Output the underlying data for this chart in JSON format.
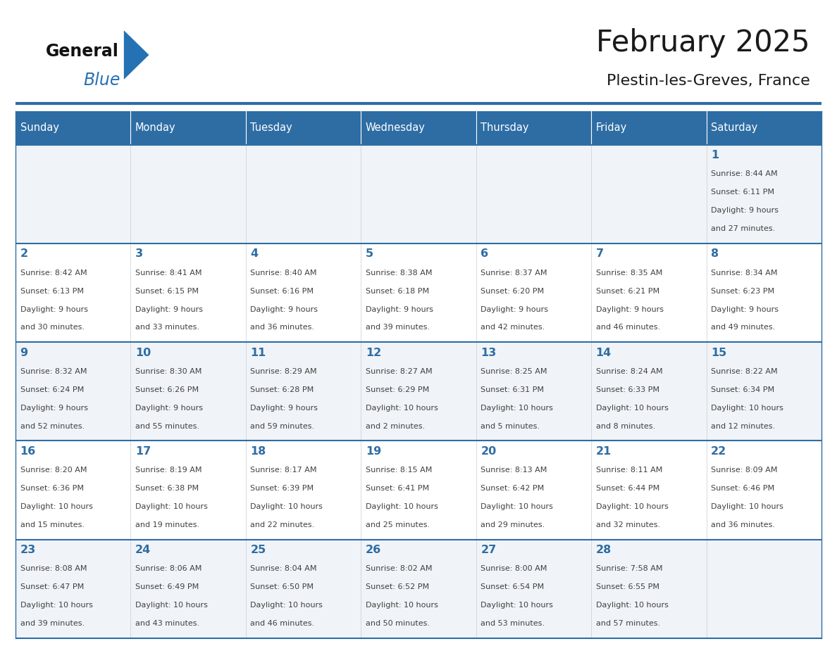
{
  "title": "February 2025",
  "subtitle": "Plestin-les-Greves, France",
  "header_bg": "#2E6DA4",
  "header_text": "#FFFFFF",
  "cell_bg_odd": "#F0F4F8",
  "cell_bg_even": "#FFFFFF",
  "day_number_color": "#2E6DA4",
  "info_text_color": "#404040",
  "border_color": "#2E6DA4",
  "days_of_week": [
    "Sunday",
    "Monday",
    "Tuesday",
    "Wednesday",
    "Thursday",
    "Friday",
    "Saturday"
  ],
  "logo_general_color": "#111111",
  "logo_blue_color": "#2472B3",
  "calendar": [
    [
      null,
      null,
      null,
      null,
      null,
      null,
      1
    ],
    [
      2,
      3,
      4,
      5,
      6,
      7,
      8
    ],
    [
      9,
      10,
      11,
      12,
      13,
      14,
      15
    ],
    [
      16,
      17,
      18,
      19,
      20,
      21,
      22
    ],
    [
      23,
      24,
      25,
      26,
      27,
      28,
      null
    ]
  ],
  "sunrise": {
    "1": "8:44 AM",
    "2": "8:42 AM",
    "3": "8:41 AM",
    "4": "8:40 AM",
    "5": "8:38 AM",
    "6": "8:37 AM",
    "7": "8:35 AM",
    "8": "8:34 AM",
    "9": "8:32 AM",
    "10": "8:30 AM",
    "11": "8:29 AM",
    "12": "8:27 AM",
    "13": "8:25 AM",
    "14": "8:24 AM",
    "15": "8:22 AM",
    "16": "8:20 AM",
    "17": "8:19 AM",
    "18": "8:17 AM",
    "19": "8:15 AM",
    "20": "8:13 AM",
    "21": "8:11 AM",
    "22": "8:09 AM",
    "23": "8:08 AM",
    "24": "8:06 AM",
    "25": "8:04 AM",
    "26": "8:02 AM",
    "27": "8:00 AM",
    "28": "7:58 AM"
  },
  "sunset": {
    "1": "6:11 PM",
    "2": "6:13 PM",
    "3": "6:15 PM",
    "4": "6:16 PM",
    "5": "6:18 PM",
    "6": "6:20 PM",
    "7": "6:21 PM",
    "8": "6:23 PM",
    "9": "6:24 PM",
    "10": "6:26 PM",
    "11": "6:28 PM",
    "12": "6:29 PM",
    "13": "6:31 PM",
    "14": "6:33 PM",
    "15": "6:34 PM",
    "16": "6:36 PM",
    "17": "6:38 PM",
    "18": "6:39 PM",
    "19": "6:41 PM",
    "20": "6:42 PM",
    "21": "6:44 PM",
    "22": "6:46 PM",
    "23": "6:47 PM",
    "24": "6:49 PM",
    "25": "6:50 PM",
    "26": "6:52 PM",
    "27": "6:54 PM",
    "28": "6:55 PM"
  },
  "daylight": {
    "1": "9 hours and 27 minutes.",
    "2": "9 hours and 30 minutes.",
    "3": "9 hours and 33 minutes.",
    "4": "9 hours and 36 minutes.",
    "5": "9 hours and 39 minutes.",
    "6": "9 hours and 42 minutes.",
    "7": "9 hours and 46 minutes.",
    "8": "9 hours and 49 minutes.",
    "9": "9 hours and 52 minutes.",
    "10": "9 hours and 55 minutes.",
    "11": "9 hours and 59 minutes.",
    "12": "10 hours and 2 minutes.",
    "13": "10 hours and 5 minutes.",
    "14": "10 hours and 8 minutes.",
    "15": "10 hours and 12 minutes.",
    "16": "10 hours and 15 minutes.",
    "17": "10 hours and 19 minutes.",
    "18": "10 hours and 22 minutes.",
    "19": "10 hours and 25 minutes.",
    "20": "10 hours and 29 minutes.",
    "21": "10 hours and 32 minutes.",
    "22": "10 hours and 36 minutes.",
    "23": "10 hours and 39 minutes.",
    "24": "10 hours and 43 minutes.",
    "25": "10 hours and 46 minutes.",
    "26": "10 hours and 50 minutes.",
    "27": "10 hours and 53 minutes.",
    "28": "10 hours and 57 minutes."
  }
}
